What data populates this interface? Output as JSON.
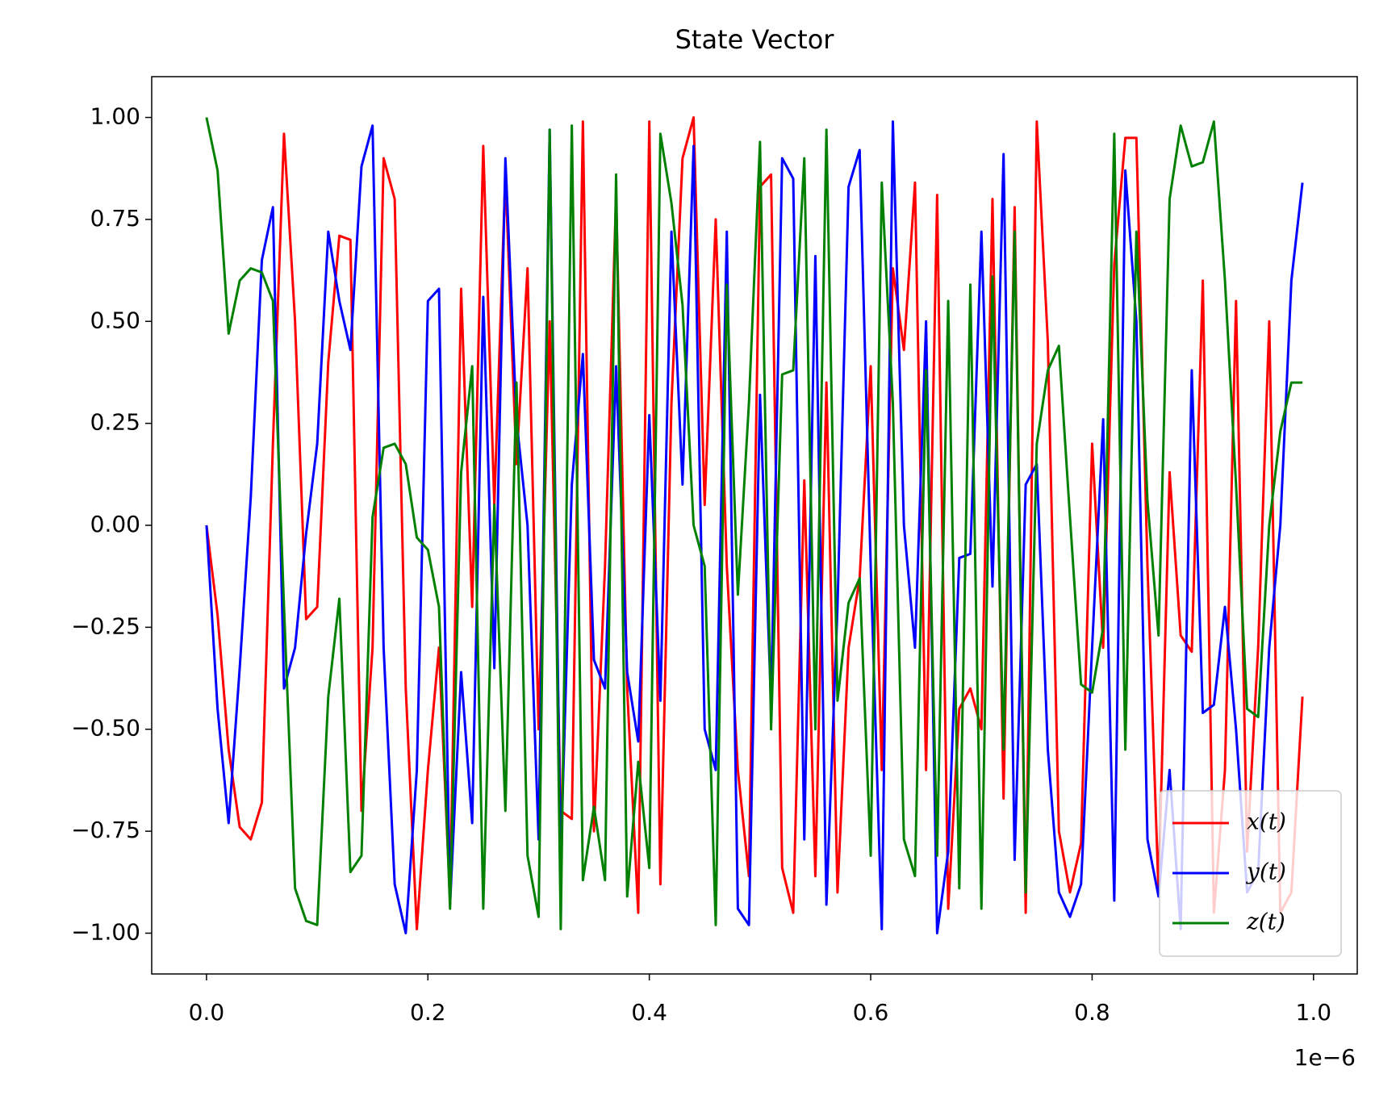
{
  "chart_data": {
    "type": "line",
    "title": "State Vector",
    "x_offset_label": "1e−6",
    "x": [
      0,
      0.01,
      0.02,
      0.03,
      0.04,
      0.05,
      0.06,
      0.07,
      0.08,
      0.09,
      0.1,
      0.11,
      0.12,
      0.13,
      0.14,
      0.15,
      0.16,
      0.17,
      0.18,
      0.19,
      0.2,
      0.21,
      0.22,
      0.23,
      0.24,
      0.25,
      0.26,
      0.27,
      0.28,
      0.29,
      0.3,
      0.31,
      0.32,
      0.33,
      0.34,
      0.35,
      0.36,
      0.37,
      0.38,
      0.39,
      0.4,
      0.41,
      0.42,
      0.43,
      0.44,
      0.45,
      0.46,
      0.47,
      0.48,
      0.49,
      0.5,
      0.51,
      0.52,
      0.53,
      0.54,
      0.55,
      0.56,
      0.57,
      0.58,
      0.59,
      0.6,
      0.61,
      0.62,
      0.63,
      0.64,
      0.65,
      0.66,
      0.67,
      0.68,
      0.69,
      0.7,
      0.71,
      0.72,
      0.73,
      0.74,
      0.75,
      0.76,
      0.77,
      0.78,
      0.79,
      0.8,
      0.81,
      0.82,
      0.83,
      0.84,
      0.85,
      0.86,
      0.87,
      0.88,
      0.89,
      0.9,
      0.91,
      0.92,
      0.93,
      0.94,
      0.95,
      0.96,
      0.97,
      0.98,
      0.99
    ],
    "series": [
      {
        "name": "x(t)",
        "color": "#ff0000",
        "values": [
          0,
          -0.22,
          -0.55,
          -0.74,
          -0.77,
          -0.68,
          0.2,
          0.96,
          0.5,
          -0.23,
          -0.2,
          0.4,
          0.71,
          0.7,
          -0.7,
          -0.3,
          0.9,
          0.8,
          -0.4,
          -0.99,
          -0.6,
          -0.3,
          -0.92,
          0.58,
          -0.2,
          0.93,
          0.05,
          0.86,
          0.15,
          0.63,
          -0.5,
          0.5,
          -0.7,
          -0.72,
          0.99,
          -0.75,
          -0.1,
          0.81,
          -0.4,
          -0.95,
          0.99,
          -0.88,
          0.3,
          0.9,
          1.0,
          0.05,
          0.75,
          -0.1,
          -0.6,
          -0.86,
          0.83,
          0.86,
          -0.84,
          -0.95,
          0.11,
          -0.86,
          0.35,
          -0.9,
          -0.3,
          -0.13,
          0.39,
          -0.6,
          0.63,
          0.43,
          0.84,
          -0.6,
          0.81,
          -0.94,
          -0.45,
          -0.4,
          -0.5,
          0.8,
          -0.67,
          0.78,
          -0.95,
          0.99,
          0.45,
          -0.75,
          -0.9,
          -0.78,
          0.2,
          -0.3,
          0.64,
          0.95,
          0.95,
          -0.1,
          -0.9,
          0.13,
          -0.27,
          -0.31,
          0.6,
          -0.95,
          -0.6,
          0.55,
          -0.8,
          -0.3,
          0.5,
          -0.95,
          -0.9,
          -0.42
        ]
      },
      {
        "name": "y(t)",
        "color": "#0000ff",
        "values": [
          0,
          -0.45,
          -0.73,
          -0.35,
          0.07,
          0.65,
          0.78,
          -0.4,
          -0.3,
          -0.02,
          0.2,
          0.72,
          0.55,
          0.43,
          0.88,
          0.98,
          -0.3,
          -0.88,
          -1.0,
          -0.6,
          0.55,
          0.58,
          -0.93,
          -0.36,
          -0.73,
          0.56,
          -0.35,
          0.9,
          0.26,
          0.0,
          -0.77,
          0.97,
          -0.82,
          0.1,
          0.42,
          -0.33,
          -0.4,
          0.39,
          -0.36,
          -0.53,
          0.27,
          -0.43,
          0.72,
          0.1,
          0.93,
          -0.5,
          -0.6,
          0.72,
          -0.94,
          -0.98,
          0.32,
          -0.44,
          0.9,
          0.85,
          -0.77,
          0.66,
          -0.93,
          -0.2,
          0.83,
          0.92,
          -0.1,
          -0.99,
          0.99,
          0.0,
          -0.3,
          0.5,
          -1.0,
          -0.8,
          -0.08,
          -0.07,
          0.72,
          -0.15,
          0.91,
          -0.82,
          0.1,
          0.15,
          -0.55,
          -0.9,
          -0.96,
          -0.88,
          -0.3,
          0.26,
          -0.92,
          0.87,
          0.5,
          -0.77,
          -0.91,
          -0.6,
          -0.99,
          0.38,
          -0.46,
          -0.44,
          -0.2,
          -0.5,
          -0.9,
          -0.85,
          -0.3,
          0.0,
          0.6,
          0.84
        ]
      },
      {
        "name": "z(t)",
        "color": "#008000",
        "values": [
          1.0,
          0.87,
          0.47,
          0.6,
          0.63,
          0.62,
          0.55,
          -0.2,
          -0.89,
          -0.97,
          -0.98,
          -0.42,
          -0.18,
          -0.85,
          -0.81,
          0.02,
          0.19,
          0.2,
          0.15,
          -0.03,
          -0.06,
          -0.2,
          -0.94,
          0.13,
          0.39,
          -0.94,
          0.05,
          -0.7,
          0.35,
          -0.81,
          -0.96,
          0.97,
          -0.99,
          0.98,
          -0.87,
          -0.69,
          -0.87,
          0.86,
          -0.91,
          -0.58,
          -0.84,
          0.96,
          0.79,
          0.54,
          0.0,
          -0.1,
          -0.98,
          0.59,
          -0.17,
          0.3,
          0.94,
          -0.5,
          0.37,
          0.38,
          0.9,
          -0.5,
          0.97,
          -0.43,
          -0.19,
          -0.13,
          -0.81,
          0.84,
          0.3,
          -0.77,
          -0.86,
          0.38,
          -0.81,
          0.55,
          -0.89,
          0.59,
          -0.94,
          0.61,
          -0.55,
          0.72,
          -0.9,
          0.2,
          0.38,
          0.44,
          0.02,
          -0.39,
          -0.41,
          -0.25,
          0.96,
          -0.55,
          0.72,
          0.06,
          -0.27,
          0.8,
          0.98,
          0.88,
          0.89,
          0.99,
          0.6,
          0.1,
          -0.45,
          -0.47,
          0.0,
          0.23,
          0.35,
          0.35
        ]
      }
    ],
    "xlim": [
      -0.0495,
      1.0395
    ],
    "xticks": [
      {
        "value": 0,
        "label": "0.0"
      },
      0.2,
      0.4,
      0.6,
      0.8,
      {
        "value": 1,
        "label": "1.0"
      }
    ],
    "ylim": [
      -1.1,
      1.1
    ],
    "yticks": [
      {
        "value": -1,
        "label": "−1.00"
      },
      {
        "value": -0.75,
        "label": "−0.75"
      },
      {
        "value": -0.5,
        "label": "−0.50"
      },
      {
        "value": -0.25,
        "label": "−0.25"
      },
      {
        "value": 0,
        "label": "0.00"
      },
      {
        "value": 0.25,
        "label": "0.25"
      },
      {
        "value": 0.5,
        "label": "0.50"
      },
      {
        "value": 0.75,
        "label": "0.75"
      },
      {
        "value": 1,
        "label": "1.00"
      }
    ],
    "grid": false,
    "legend": "lower right"
  }
}
